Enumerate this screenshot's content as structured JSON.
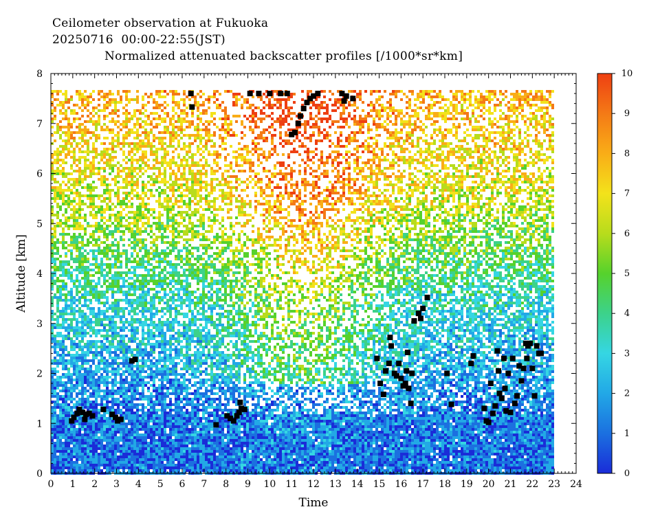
{
  "header": {
    "line1": "Ceilometer observation at Fukuoka",
    "line2": "20250716  00:00-22:55(JST)",
    "line3": "Normalized attenuated backscatter profiles [/1000*sr*km]"
  },
  "chart_data": {
    "type": "heatmap",
    "title": "Normalized attenuated backscatter profiles [/1000*sr*km]",
    "xlabel": "Time",
    "ylabel": "Altitude [km]",
    "xlim": [
      0,
      24
    ],
    "ylim": [
      0,
      8
    ],
    "data_time_range": [
      0,
      22.92
    ],
    "data_altitude_max": 7.67,
    "x_ticks": [
      "0",
      "1",
      "2",
      "3",
      "4",
      "5",
      "6",
      "7",
      "8",
      "9",
      "10",
      "11",
      "12",
      "13",
      "14",
      "15",
      "16",
      "17",
      "18",
      "19",
      "20",
      "21",
      "22",
      "23",
      "24"
    ],
    "y_ticks": [
      "0",
      "1",
      "2",
      "3",
      "4",
      "5",
      "6",
      "7",
      "8"
    ],
    "colorbar": {
      "min": 0,
      "max": 10,
      "ticks": [
        "0",
        "1",
        "2",
        "3",
        "4",
        "5",
        "6",
        "7",
        "8",
        "9",
        "10"
      ],
      "colors": [
        "#1a2cd8",
        "#1b70e0",
        "#22a8e6",
        "#35d6e3",
        "#3cd28a",
        "#56d22c",
        "#b8dc1c",
        "#f3e21b",
        "#f9ad17",
        "#f47a16",
        "#ee3f12"
      ]
    },
    "description_levels": [
      {
        "altitude_range": [
          0,
          1.4
        ],
        "typical_value": 1.0
      },
      {
        "altitude_range": [
          1.4,
          3.5
        ],
        "typical_value": 2.0
      },
      {
        "altitude_range": [
          3.5,
          5.5
        ],
        "typical_value": 4.0
      },
      {
        "altitude_range": [
          5.5,
          7.67
        ],
        "typical_value": 7.5
      }
    ],
    "cloud_base_points": [
      [
        0.95,
        1.05
      ],
      [
        1.05,
        1.12
      ],
      [
        1.2,
        1.2
      ],
      [
        1.3,
        1.28
      ],
      [
        1.45,
        1.22
      ],
      [
        1.6,
        1.18
      ],
      [
        1.75,
        1.2
      ],
      [
        1.9,
        1.15
      ],
      [
        1.55,
        1.08
      ],
      [
        2.4,
        1.28
      ],
      [
        2.8,
        1.18
      ],
      [
        2.95,
        1.12
      ],
      [
        3.05,
        1.05
      ],
      [
        3.2,
        1.08
      ],
      [
        3.7,
        2.25
      ],
      [
        3.85,
        2.28
      ],
      [
        6.4,
        7.6
      ],
      [
        6.45,
        7.33
      ],
      [
        7.55,
        0.97
      ],
      [
        8.05,
        1.15
      ],
      [
        8.2,
        1.1
      ],
      [
        8.35,
        1.05
      ],
      [
        8.5,
        1.15
      ],
      [
        8.6,
        1.22
      ],
      [
        8.7,
        1.3
      ],
      [
        8.85,
        1.28
      ],
      [
        8.65,
        1.42
      ],
      [
        9.1,
        7.6
      ],
      [
        9.5,
        7.6
      ],
      [
        10.0,
        7.6
      ],
      [
        10.5,
        7.6
      ],
      [
        10.8,
        7.6
      ],
      [
        11.0,
        6.78
      ],
      [
        11.15,
        6.82
      ],
      [
        11.3,
        7.0
      ],
      [
        11.4,
        7.15
      ],
      [
        11.55,
        7.3
      ],
      [
        11.7,
        7.42
      ],
      [
        11.85,
        7.5
      ],
      [
        12.0,
        7.55
      ],
      [
        12.2,
        7.6
      ],
      [
        13.3,
        7.6
      ],
      [
        13.5,
        7.55
      ],
      [
        13.4,
        7.45
      ],
      [
        13.8,
        7.5
      ],
      [
        14.9,
        2.3
      ],
      [
        15.05,
        1.8
      ],
      [
        15.2,
        1.58
      ],
      [
        15.3,
        2.05
      ],
      [
        15.45,
        2.2
      ],
      [
        15.55,
        2.55
      ],
      [
        15.5,
        2.72
      ],
      [
        15.7,
        2.0
      ],
      [
        15.8,
        1.95
      ],
      [
        15.9,
        2.2
      ],
      [
        16.0,
        1.9
      ],
      [
        16.1,
        1.75
      ],
      [
        16.2,
        1.8
      ],
      [
        16.25,
        2.05
      ],
      [
        16.35,
        1.7
      ],
      [
        16.45,
        1.4
      ],
      [
        16.5,
        2.0
      ],
      [
        16.3,
        2.42
      ],
      [
        16.6,
        3.05
      ],
      [
        16.8,
        3.2
      ],
      [
        16.9,
        3.1
      ],
      [
        17.0,
        3.3
      ],
      [
        17.2,
        3.52
      ],
      [
        18.1,
        2.0
      ],
      [
        18.3,
        1.38
      ],
      [
        19.2,
        2.2
      ],
      [
        19.3,
        2.35
      ],
      [
        19.8,
        1.3
      ],
      [
        19.9,
        1.05
      ],
      [
        20.0,
        1.02
      ],
      [
        20.1,
        1.8
      ],
      [
        20.2,
        1.2
      ],
      [
        20.3,
        1.35
      ],
      [
        20.4,
        2.45
      ],
      [
        20.45,
        2.05
      ],
      [
        20.5,
        1.6
      ],
      [
        20.6,
        1.5
      ],
      [
        20.7,
        2.3
      ],
      [
        20.75,
        1.7
      ],
      [
        20.8,
        1.25
      ],
      [
        20.9,
        2.0
      ],
      [
        21.0,
        1.22
      ],
      [
        21.1,
        2.3
      ],
      [
        21.2,
        1.4
      ],
      [
        21.3,
        1.55
      ],
      [
        21.4,
        2.15
      ],
      [
        21.5,
        1.85
      ],
      [
        21.6,
        2.1
      ],
      [
        21.7,
        2.6
      ],
      [
        21.75,
        2.3
      ],
      [
        21.8,
        2.55
      ],
      [
        21.9,
        2.6
      ],
      [
        22.0,
        2.1
      ],
      [
        22.1,
        1.55
      ],
      [
        22.2,
        2.55
      ],
      [
        22.3,
        2.4
      ],
      [
        22.4,
        2.4
      ]
    ]
  }
}
